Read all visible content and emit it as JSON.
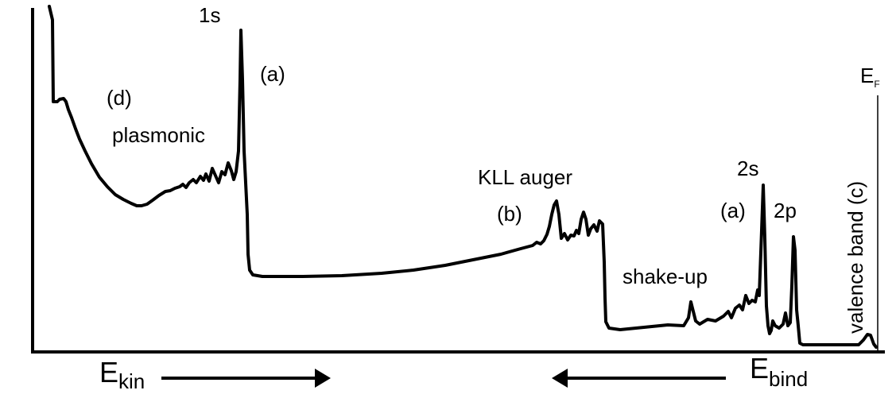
{
  "chart_data": {
    "type": "line",
    "title": "",
    "xlabel_left": {
      "main": "E",
      "sub": "kin"
    },
    "xlabel_right": {
      "main": "E",
      "sub": "bind"
    },
    "arrows": [
      {
        "label": "E_kin",
        "direction": "right"
      },
      {
        "label": "E_bind",
        "direction": "left"
      }
    ],
    "fermi_label": {
      "main": "E",
      "sub": "F"
    },
    "annotations": [
      {
        "text": "1s"
      },
      {
        "text": "(a)"
      },
      {
        "text": "(d)"
      },
      {
        "text": "plasmonic"
      },
      {
        "text": "KLL auger"
      },
      {
        "text": "(b)"
      },
      {
        "text": "2s"
      },
      {
        "text": "(a)"
      },
      {
        "text": "2p"
      },
      {
        "text": "shake-up"
      },
      {
        "text": "valence band (c)"
      }
    ],
    "series": [
      {
        "values": [
          [
            62,
            8
          ],
          [
            66,
            25
          ],
          [
            67,
            128
          ],
          [
            72,
            128
          ],
          [
            75,
            125
          ],
          [
            80,
            124
          ],
          [
            83,
            128
          ],
          [
            86,
            138
          ],
          [
            90,
            148
          ],
          [
            95,
            162
          ],
          [
            100,
            175
          ],
          [
            107,
            190
          ],
          [
            115,
            206
          ],
          [
            125,
            223
          ],
          [
            135,
            235
          ],
          [
            145,
            245
          ],
          [
            155,
            251
          ],
          [
            165,
            256
          ],
          [
            172,
            259
          ],
          [
            178,
            259
          ],
          [
            185,
            257
          ],
          [
            192,
            252
          ],
          [
            200,
            246
          ],
          [
            208,
            241
          ],
          [
            214,
            240
          ],
          [
            220,
            237
          ],
          [
            226,
            235
          ],
          [
            230,
            232
          ],
          [
            234,
            236
          ],
          [
            238,
            230
          ],
          [
            243,
            226
          ],
          [
            247,
            230
          ],
          [
            252,
            222
          ],
          [
            256,
            227
          ],
          [
            259,
            219
          ],
          [
            263,
            228
          ],
          [
            267,
            212
          ],
          [
            271,
            221
          ],
          [
            275,
            230
          ],
          [
            279,
            216
          ],
          [
            283,
            220
          ],
          [
            287,
            205
          ],
          [
            291,
            215
          ],
          [
            294,
            226
          ],
          [
            297,
            216
          ],
          [
            300,
            190
          ],
          [
            302,
            100
          ],
          [
            303,
            38
          ],
          [
            305,
            100
          ],
          [
            307,
            190
          ],
          [
            309,
            230
          ],
          [
            311,
            270
          ],
          [
            312,
            320
          ],
          [
            314,
            340
          ],
          [
            318,
            346
          ],
          [
            330,
            348
          ],
          [
            380,
            348
          ],
          [
            430,
            347
          ],
          [
            480,
            344
          ],
          [
            520,
            340
          ],
          [
            560,
            334
          ],
          [
            600,
            326
          ],
          [
            630,
            320
          ],
          [
            655,
            313
          ],
          [
            670,
            309
          ],
          [
            675,
            305
          ],
          [
            680,
            307
          ],
          [
            684,
            303
          ],
          [
            688,
            295
          ],
          [
            691,
            285
          ],
          [
            694,
            270
          ],
          [
            697,
            258
          ],
          [
            700,
            253
          ],
          [
            703,
            270
          ],
          [
            706,
            300
          ],
          [
            710,
            294
          ],
          [
            714,
            302
          ],
          [
            718,
            296
          ],
          [
            722,
            297
          ],
          [
            725,
            290
          ],
          [
            728,
            294
          ],
          [
            731,
            276
          ],
          [
            734,
            267
          ],
          [
            737,
            276
          ],
          [
            740,
            296
          ],
          [
            743,
            288
          ],
          [
            747,
            283
          ],
          [
            751,
            291
          ],
          [
            754,
            278
          ],
          [
            758,
            282
          ],
          [
            760,
            330
          ],
          [
            761,
            375
          ],
          [
            762,
            405
          ],
          [
            766,
            413
          ],
          [
            780,
            415
          ],
          [
            800,
            413
          ],
          [
            820,
            411
          ],
          [
            840,
            409
          ],
          [
            860,
            410
          ],
          [
            866,
            400
          ],
          [
            869,
            380
          ],
          [
            872,
            392
          ],
          [
            875,
            404
          ],
          [
            880,
            408
          ],
          [
            890,
            402
          ],
          [
            900,
            404
          ],
          [
            910,
            398
          ],
          [
            916,
            392
          ],
          [
            920,
            400
          ],
          [
            925,
            388
          ],
          [
            930,
            384
          ],
          [
            934,
            390
          ],
          [
            938,
            372
          ],
          [
            942,
            382
          ],
          [
            946,
            378
          ],
          [
            950,
            380
          ],
          [
            953,
            365
          ],
          [
            955,
            372
          ],
          [
            958,
            290
          ],
          [
            960,
            233
          ],
          [
            962,
            300
          ],
          [
            964,
            385
          ],
          [
            966,
            410
          ],
          [
            968,
            420
          ],
          [
            970,
            416
          ],
          [
            972,
            404
          ],
          [
            975,
            410
          ],
          [
            980,
            413
          ],
          [
            985,
            408
          ],
          [
            988,
            394
          ],
          [
            991,
            410
          ],
          [
            994,
            406
          ],
          [
            996,
            360
          ],
          [
            998,
            298
          ],
          [
            1000,
            315
          ],
          [
            1002,
            390
          ],
          [
            1004,
            410
          ],
          [
            1006,
            432
          ],
          [
            1010,
            434
          ],
          [
            1080,
            434
          ],
          [
            1086,
            428
          ],
          [
            1091,
            421
          ],
          [
            1095,
            422
          ],
          [
            1099,
            433
          ],
          [
            1102,
            437
          ]
        ]
      }
    ]
  }
}
